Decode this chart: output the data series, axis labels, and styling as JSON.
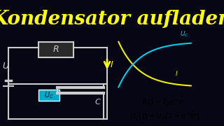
{
  "title": "Kondensator aufladen",
  "title_color": "#FFFF00",
  "bg_color": "#060614",
  "circuit_color": "#CCCCCC",
  "formula1_bg": "#FFFF00",
  "formula2_bg": "#00BBCC",
  "graph_UC_color": "#00CCEE",
  "graph_I_color": "#EEEE00",
  "I_arrow_color": "#FFFF00",
  "UC_box_color": "#00AACC",
  "R_box_color": "#2a2a2a",
  "label_color": "#CCCCCC"
}
